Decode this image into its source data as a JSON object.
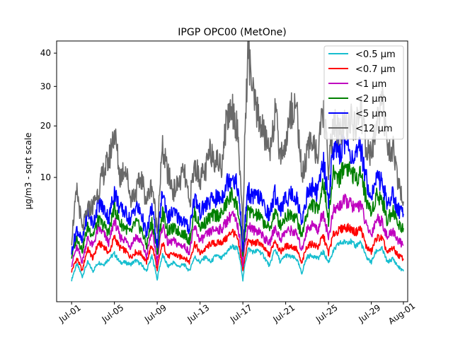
{
  "chart_data": {
    "type": "line",
    "title": "IPGP OPC00 (MetOne)",
    "xlabel": "",
    "ylabel": "µg/m3 - sqrt scale",
    "y_scale": "sqrt",
    "ylim": [
      0,
      44
    ],
    "y_ticks": [
      10,
      20,
      30,
      40
    ],
    "x_range_days": [
      -1.4,
      31.4
    ],
    "x_ticks": [
      {
        "day": 0,
        "label": "Jul-01"
      },
      {
        "day": 4,
        "label": "Jul-05"
      },
      {
        "day": 8,
        "label": "Jul-09"
      },
      {
        "day": 12,
        "label": "Jul-13"
      },
      {
        "day": 16,
        "label": "Jul-17"
      },
      {
        "day": 20,
        "label": "Jul-21"
      },
      {
        "day": 24,
        "label": "Jul-25"
      },
      {
        "day": 28,
        "label": "Jul-29"
      },
      {
        "day": 31,
        "label": "Aug-01"
      }
    ],
    "x_days": [
      0,
      0.5,
      1,
      1.5,
      2,
      2.5,
      3,
      3.5,
      4,
      4.5,
      5,
      5.5,
      6,
      6.5,
      7,
      7.5,
      8,
      8.5,
      9,
      9.5,
      10,
      10.5,
      11,
      11.5,
      12,
      12.5,
      13,
      13.5,
      14,
      14.5,
      15,
      15.5,
      16,
      16.5,
      17,
      17.5,
      18,
      18.5,
      19,
      19.5,
      20,
      20.5,
      21,
      21.5,
      22,
      22.5,
      23,
      23.5,
      24,
      24.5,
      25,
      25.5,
      26,
      26.5,
      27,
      27.5,
      28,
      28.5,
      29,
      29.5,
      30,
      30.5,
      31
    ],
    "legend_position": "top-right",
    "series": [
      {
        "name": "<0.5 µm",
        "color": "#17becf",
        "values": [
          0.3,
          0.9,
          0.4,
          1.0,
          0.6,
          1.0,
          0.9,
          1.2,
          1.5,
          1.0,
          1.0,
          0.9,
          1.1,
          0.9,
          0.6,
          1.3,
          0.3,
          1.4,
          0.8,
          1.0,
          0.8,
          0.9,
          0.6,
          1.3,
          1.0,
          1.3,
          1.0,
          1.4,
          1.2,
          1.6,
          2.0,
          1.8,
          0.3,
          1.8,
          1.6,
          1.7,
          1.3,
          0.8,
          1.8,
          1.0,
          1.4,
          1.3,
          1.2,
          0.5,
          1.3,
          1.4,
          1.2,
          1.6,
          1.0,
          1.7,
          2.2,
          2.3,
          2.4,
          2.0,
          2.3,
          1.3,
          1.0,
          1.7,
          1.8,
          1.0,
          1.2,
          0.8,
          0.6
        ]
      },
      {
        "name": "<0.7 µm",
        "color": "#ff0000",
        "values": [
          0.6,
          1.2,
          0.6,
          1.8,
          1.2,
          2.2,
          2.0,
          1.5,
          2.7,
          1.9,
          1.7,
          1.3,
          1.6,
          1.5,
          1.0,
          2.1,
          0.6,
          2.2,
          1.3,
          1.5,
          1.3,
          1.3,
          1.0,
          2.2,
          1.5,
          1.8,
          2.2,
          2.2,
          2.3,
          2.6,
          3.3,
          2.5,
          0.6,
          2.4,
          2.2,
          2.3,
          1.8,
          1.4,
          2.5,
          1.6,
          2.0,
          2.0,
          1.8,
          0.9,
          2.0,
          2.2,
          1.9,
          2.8,
          1.5,
          3.0,
          3.3,
          3.6,
          3.5,
          3.1,
          3.5,
          2.0,
          1.6,
          2.7,
          2.6,
          1.5,
          1.9,
          1.4,
          1.2
        ]
      },
      {
        "name": "<1 µm",
        "color": "#bf00bf",
        "values": [
          0.9,
          1.9,
          1.0,
          2.6,
          2.0,
          3.5,
          3.0,
          2.2,
          4.3,
          2.7,
          2.5,
          2.0,
          2.8,
          2.3,
          1.3,
          3.2,
          1.0,
          3.8,
          2.2,
          2.4,
          2.1,
          2.0,
          1.6,
          3.6,
          2.4,
          2.8,
          3.2,
          3.4,
          3.4,
          4.2,
          5.0,
          3.8,
          0.9,
          3.8,
          3.3,
          3.3,
          2.6,
          2.2,
          3.6,
          2.5,
          3.2,
          3.3,
          3.0,
          1.7,
          3.4,
          3.9,
          3.3,
          5.2,
          2.6,
          5.4,
          5.9,
          6.6,
          6.3,
          5.6,
          6.3,
          3.8,
          2.9,
          4.5,
          4.2,
          2.6,
          3.3,
          2.4,
          2.1
        ]
      },
      {
        "name": "<2 µm",
        "color": "#008000",
        "values": [
          1.3,
          2.7,
          1.7,
          3.6,
          2.9,
          4.3,
          3.8,
          3.1,
          5.9,
          4.0,
          3.6,
          3.0,
          4.1,
          3.4,
          2.0,
          4.2,
          1.4,
          5.2,
          3.2,
          3.5,
          3.2,
          3.0,
          2.4,
          5.1,
          3.6,
          4.1,
          4.7,
          4.9,
          4.9,
          6.3,
          7.5,
          5.8,
          1.3,
          5.6,
          4.9,
          4.8,
          4.0,
          3.4,
          5.2,
          3.8,
          4.7,
          5.1,
          4.6,
          2.7,
          5.2,
          6.2,
          5.4,
          9.3,
          4.3,
          11.0,
          10.0,
          12.0,
          11.5,
          9.8,
          11.0,
          7.0,
          5.0,
          7.5,
          6.8,
          4.2,
          5.6,
          3.9,
          3.5
        ]
      },
      {
        "name": "<5 µm",
        "color": "#0000ff",
        "values": [
          1.6,
          3.5,
          2.2,
          5.3,
          3.8,
          6.4,
          5.6,
          4.5,
          8.0,
          5.6,
          5.2,
          4.3,
          6.0,
          5.0,
          2.8,
          5.8,
          1.9,
          7.8,
          4.6,
          5.2,
          4.6,
          4.2,
          3.4,
          7.1,
          5.2,
          6.0,
          6.6,
          6.9,
          7.0,
          9.2,
          10.5,
          8.6,
          1.6,
          8.0,
          7.0,
          7.2,
          5.9,
          4.8,
          7.6,
          5.6,
          6.8,
          7.6,
          7.0,
          4.2,
          7.3,
          8.6,
          7.6,
          13.0,
          6.5,
          16.0,
          14.0,
          17.0,
          14.5,
          13.0,
          15.5,
          10.0,
          7.0,
          10.0,
          9.5,
          6.0,
          7.5,
          5.5,
          5.0
        ]
      },
      {
        "name": "<12 µm",
        "color": "#696969",
        "values": [
          2.5,
          7.8,
          3.2,
          5.5,
          6.0,
          8.0,
          11.0,
          13.0,
          19.0,
          10.0,
          12.0,
          7.0,
          7.8,
          10.0,
          6.5,
          9.0,
          3.0,
          15.0,
          10.5,
          8.0,
          9.0,
          11.0,
          6.0,
          12.0,
          10.0,
          11.0,
          15.0,
          13.0,
          12.0,
          22.0,
          25.0,
          19.0,
          2.5,
          41.0,
          26.0,
          22.0,
          18.0,
          15.0,
          23.0,
          14.0,
          16.0,
          24.0,
          25.0,
          10.0,
          14.0,
          18.0,
          13.0,
          24.0,
          12.0,
          21.0,
          18.0,
          20.0,
          22.0,
          19.0,
          25.0,
          15.0,
          14.0,
          20.0,
          29.0,
          13.0,
          16.0,
          9.0,
          6.5
        ]
      }
    ]
  }
}
